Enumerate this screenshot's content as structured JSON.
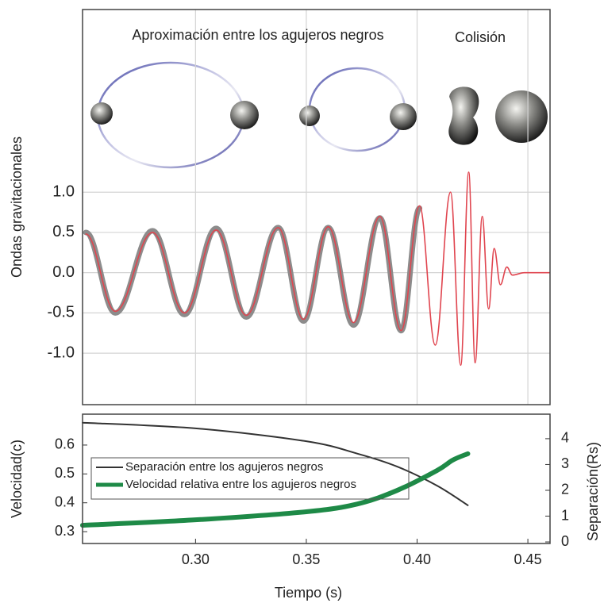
{
  "chart_data": [
    {
      "type": "line",
      "ylabel": "Ondas gravitacionales",
      "annotations": [
        "Aproximación entre los agujeros negros",
        "Colisión"
      ],
      "xlim": [
        0.249,
        0.46
      ],
      "xticks": [
        0.3,
        0.35,
        0.4,
        0.45
      ],
      "ylim": [
        -1.64,
        3.27
      ],
      "yticks": [
        {
          "value": 1,
          "label": "1.0"
        },
        0.5,
        {
          "value": 0,
          "label": "0.0"
        },
        -0.5,
        {
          "value": -1,
          "label": "-1.0"
        }
      ],
      "grid": true,
      "series": [
        {
          "color": "#8c8c8c",
          "x": [
            0.2505,
            0.2638,
            0.2806,
            0.295,
            0.3093,
            0.3229,
            0.3373,
            0.3487,
            0.3599,
            0.3713,
            0.3832,
            0.3928,
            0.4011
          ],
          "values": [
            0.5,
            -0.5,
            0.52,
            -0.52,
            0.55,
            -0.55,
            0.56,
            -0.6,
            0.56,
            -0.65,
            0.68,
            -0.72,
            0.8
          ]
        },
        {
          "color": "#e0454f",
          "x": [
            0.2505,
            0.2638,
            0.2806,
            0.295,
            0.3093,
            0.3229,
            0.3373,
            0.3487,
            0.3599,
            0.3713,
            0.3832,
            0.3928,
            0.4011,
            0.4082,
            0.4151,
            0.4197,
            0.4233,
            0.4262,
            0.4294,
            0.4323,
            0.4348,
            0.4376,
            0.4405,
            0.443,
            0.4484,
            0.46
          ],
          "values": [
            0.48,
            -0.48,
            0.5,
            -0.5,
            0.53,
            -0.53,
            0.56,
            -0.58,
            0.57,
            -0.62,
            0.7,
            -0.72,
            0.83,
            -0.9,
            1.0,
            -1.15,
            1.25,
            -1.12,
            0.7,
            -0.45,
            0.3,
            -0.15,
            0.07,
            -0.03,
            0,
            0
          ]
        }
      ]
    },
    {
      "type": "line",
      "xlabel": "Tiempo (s)",
      "ylabel": "Velocidad(c)",
      "y2label": "Separación(Rs)",
      "xlim": [
        0.249,
        0.46
      ],
      "xticks": [
        {
          "value": 0.3,
          "label": "0.30"
        },
        0.35,
        {
          "value": 0.4,
          "label": "0.40"
        },
        0.45
      ],
      "ylim": [
        0.259,
        0.707
      ],
      "yticks": [
        0.6,
        0.5,
        0.4,
        0.3
      ],
      "y2lim": [
        -0.06,
        4.95
      ],
      "y2ticks": [
        4,
        3,
        2,
        1,
        0
      ],
      "series": [
        {
          "name": "Separación entre los agujeros negros",
          "color": "#333333",
          "axis": "y2",
          "x": [
            0.249,
            0.3,
            0.35,
            0.3731,
            0.391,
            0.409,
            0.4229
          ],
          "values": [
            4.62,
            4.4,
            3.9,
            3.42,
            2.92,
            2.18,
            1.42
          ]
        },
        {
          "name": "Velocidad relativa entre los agujeros negros",
          "color": "#1e8a47",
          "x": [
            0.249,
            0.3,
            0.35,
            0.3731,
            0.391,
            0.409,
            0.4161,
            0.4229
          ],
          "values": [
            0.322,
            0.341,
            0.369,
            0.396,
            0.443,
            0.512,
            0.548,
            0.57
          ]
        }
      ]
    }
  ]
}
